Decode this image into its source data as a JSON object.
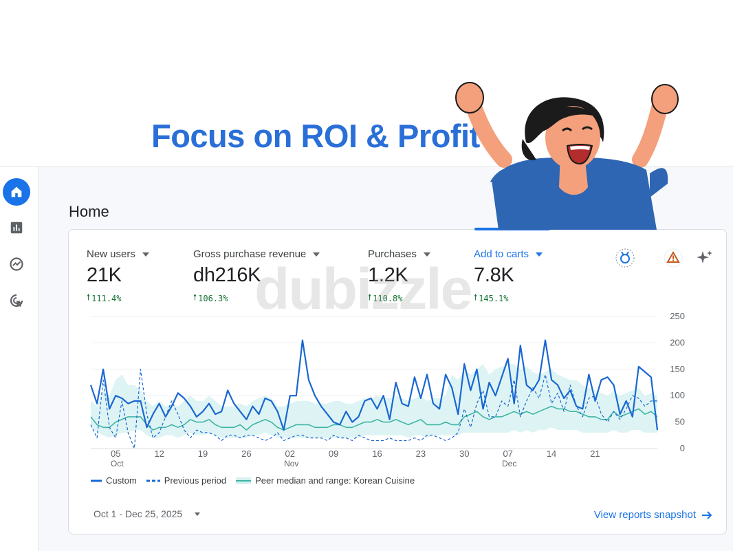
{
  "headline": "Focus on ROI & Profit",
  "watermark": "dubizzle",
  "page_title": "Home",
  "rail": [
    {
      "name": "home-icon",
      "active": true
    },
    {
      "name": "reports-icon",
      "active": false
    },
    {
      "name": "explore-icon",
      "active": false
    },
    {
      "name": "advertising-icon",
      "active": false
    }
  ],
  "metrics": [
    {
      "label": "New users",
      "value": "21K",
      "delta": "111.4%",
      "active": false
    },
    {
      "label": "Gross purchase revenue",
      "value": "dh216K",
      "delta": "106.3%",
      "active": false
    },
    {
      "label": "Purchases",
      "value": "1.2K",
      "delta": "110.8%",
      "active": false
    },
    {
      "label": "Add to carts",
      "value": "7.8K",
      "delta": "145.1%",
      "active": true
    }
  ],
  "card_icons": [
    "badge-icon",
    "warning-icon",
    "insights-sparkle-icon"
  ],
  "legend": {
    "custom": "Custom",
    "previous": "Previous period",
    "peer": "Peer median and range: Korean Cuisine"
  },
  "date_range": "Oct 1 - Dec 25, 2025",
  "snapshot_link": "View reports snapshot",
  "colors": {
    "primary": "#1a73e8",
    "series_custom": "#1967d2",
    "series_peer": "#3fb5a4",
    "band": "#d6f1f1",
    "positive": "#137333",
    "headline": "#2a6fd8"
  },
  "chart_data": {
    "type": "line",
    "title": "",
    "xlabel": "",
    "ylabel": "",
    "ylim": [
      0,
      250
    ],
    "yticks": [
      "0",
      "50",
      "100",
      "150",
      "200",
      "250"
    ],
    "x_ticks": [
      {
        "day": 4,
        "label": "05",
        "sub": "Oct"
      },
      {
        "day": 11,
        "label": "12",
        "sub": ""
      },
      {
        "day": 18,
        "label": "19",
        "sub": ""
      },
      {
        "day": 25,
        "label": "26",
        "sub": ""
      },
      {
        "day": 32,
        "label": "02",
        "sub": "Nov"
      },
      {
        "day": 39,
        "label": "09",
        "sub": ""
      },
      {
        "day": 46,
        "label": "16",
        "sub": ""
      },
      {
        "day": 53,
        "label": "23",
        "sub": ""
      },
      {
        "day": 60,
        "label": "30",
        "sub": ""
      },
      {
        "day": 67,
        "label": "07",
        "sub": "Dec"
      },
      {
        "day": 74,
        "label": "14",
        "sub": ""
      },
      {
        "day": 81,
        "label": "21",
        "sub": ""
      }
    ],
    "y_axis_position": "right",
    "grid": true,
    "legend_position": "bottom",
    "series": [
      {
        "name": "Custom",
        "style": "solid",
        "values": [
          120,
          85,
          150,
          75,
          100,
          95,
          85,
          90,
          90,
          40,
          65,
          85,
          60,
          80,
          105,
          95,
          80,
          60,
          70,
          85,
          65,
          70,
          110,
          85,
          70,
          55,
          80,
          65,
          95,
          90,
          70,
          35,
          100,
          100,
          205,
          130,
          100,
          80,
          65,
          50,
          45,
          70,
          50,
          60,
          90,
          95,
          75,
          100,
          55,
          125,
          85,
          80,
          135,
          95,
          140,
          85,
          75,
          140,
          115,
          65,
          160,
          110,
          150,
          75,
          125,
          100,
          135,
          170,
          85,
          195,
          120,
          110,
          130,
          205,
          130,
          120,
          95,
          110,
          80,
          75,
          140,
          90,
          130,
          135,
          120,
          65,
          90,
          60,
          155,
          145,
          135,
          35
        ]
      },
      {
        "name": "Previous period",
        "style": "dashed",
        "values": [
          45,
          20,
          130,
          40,
          20,
          90,
          30,
          0,
          150,
          65,
          20,
          30,
          60,
          90,
          65,
          35,
          20,
          35,
          30,
          30,
          25,
          15,
          25,
          25,
          20,
          25,
          25,
          20,
          15,
          20,
          30,
          15,
          20,
          25,
          25,
          20,
          20,
          20,
          15,
          25,
          20,
          20,
          15,
          25,
          20,
          15,
          15,
          15,
          20,
          15,
          15,
          15,
          20,
          15,
          25,
          25,
          20,
          15,
          20,
          30,
          75,
          40,
          85,
          110,
          60,
          60,
          90,
          80,
          130,
          60,
          90,
          115,
          95,
          140,
          85,
          105,
          70,
          120,
          80,
          60,
          95,
          100,
          65,
          50,
          70,
          55,
          75,
          100,
          95,
          80,
          90,
          90
        ]
      },
      {
        "name": "Peer median and range: Korean Cuisine",
        "style": "solid",
        "values": [
          60,
          45,
          40,
          40,
          50,
          55,
          60,
          60,
          60,
          45,
          35,
          40,
          40,
          45,
          40,
          45,
          55,
          50,
          50,
          55,
          45,
          40,
          40,
          40,
          45,
          35,
          45,
          50,
          55,
          50,
          40,
          35,
          40,
          45,
          45,
          45,
          40,
          40,
          40,
          45,
          45,
          40,
          40,
          45,
          50,
          50,
          55,
          50,
          50,
          55,
          50,
          45,
          50,
          55,
          45,
          45,
          45,
          50,
          45,
          45,
          60,
          65,
          70,
          60,
          55,
          60,
          60,
          65,
          70,
          65,
          70,
          65,
          70,
          75,
          80,
          75,
          75,
          70,
          70,
          65,
          60,
          60,
          55,
          55,
          70,
          60,
          65,
          70,
          75,
          65,
          70,
          60
        ],
        "range_low": [
          40,
          30,
          25,
          20,
          25,
          30,
          30,
          35,
          35,
          25,
          20,
          20,
          25,
          25,
          20,
          25,
          30,
          25,
          25,
          30,
          25,
          20,
          20,
          20,
          20,
          20,
          25,
          25,
          30,
          25,
          20,
          20,
          20,
          20,
          20,
          20,
          20,
          20,
          20,
          20,
          20,
          20,
          20,
          20,
          25,
          25,
          25,
          25,
          25,
          25,
          25,
          20,
          25,
          25,
          20,
          25,
          25,
          25,
          25,
          25,
          30,
          30,
          30,
          30,
          30,
          30,
          30,
          30,
          35,
          30,
          35,
          30,
          35,
          35,
          40,
          35,
          35,
          35,
          35,
          30,
          30,
          30,
          30,
          30,
          35,
          30,
          30,
          35,
          35,
          30,
          30,
          30
        ],
        "range_high": [
          90,
          80,
          110,
          100,
          130,
          140,
          120,
          120,
          110,
          90,
          80,
          90,
          80,
          85,
          80,
          90,
          100,
          90,
          90,
          100,
          90,
          80,
          80,
          80,
          85,
          80,
          90,
          95,
          100,
          95,
          80,
          80,
          85,
          90,
          90,
          90,
          85,
          85,
          85,
          90,
          90,
          85,
          85,
          90,
          95,
          95,
          100,
          95,
          95,
          100,
          95,
          90,
          95,
          100,
          90,
          95,
          95,
          100,
          140,
          130,
          150,
          140,
          150,
          160,
          140,
          150,
          155,
          160,
          160,
          150,
          155,
          145,
          140,
          145,
          150,
          140,
          135,
          130,
          130,
          120,
          115,
          110,
          105,
          100,
          110,
          100,
          105,
          110,
          115,
          100,
          105,
          100
        ]
      }
    ]
  }
}
